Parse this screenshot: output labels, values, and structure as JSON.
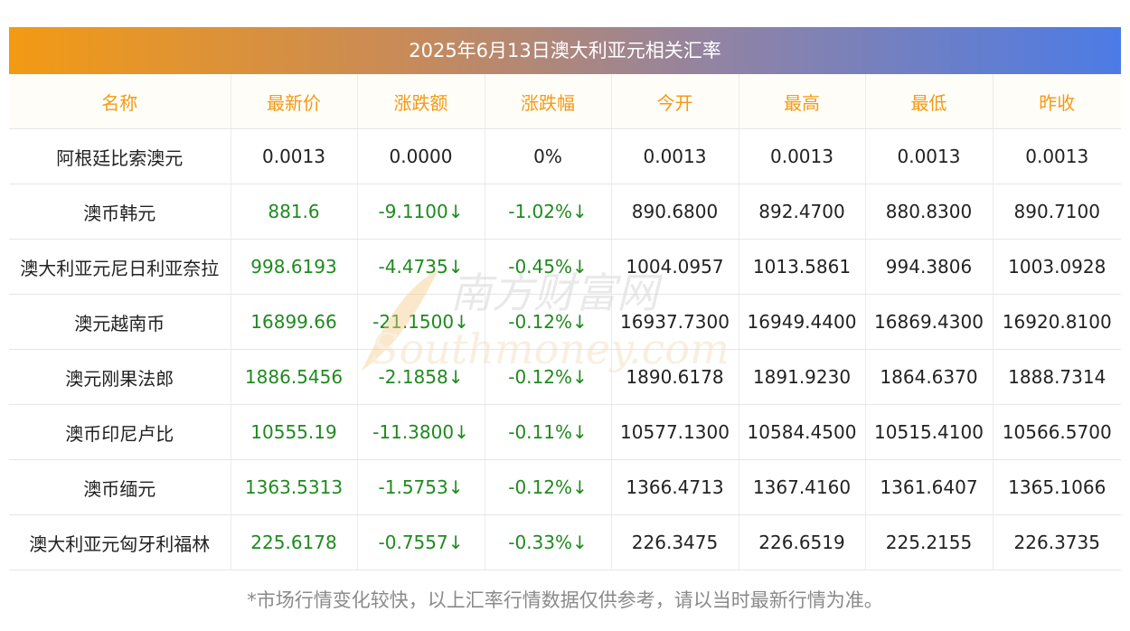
{
  "title": "2025年6月13日澳大利亚元相关汇率",
  "headers": [
    "名称",
    "最新价",
    "涨跌额",
    "涨跌幅",
    "今开",
    "最高",
    "最低",
    "昨收"
  ],
  "rows": [
    {
      "name": "阿根廷比索澳元",
      "latest": "0.0013",
      "change": "0.0000",
      "change_pct": "0%",
      "open": "0.0013",
      "high": "0.0013",
      "low": "0.0013",
      "prev_close": "0.0013",
      "trend": "flat"
    },
    {
      "name": "澳币韩元",
      "latest": "881.6",
      "change": "-9.1100↓",
      "change_pct": "-1.02%↓",
      "open": "890.6800",
      "high": "892.4700",
      "low": "880.8300",
      "prev_close": "890.7100",
      "trend": "down"
    },
    {
      "name": "澳大利亚元尼日利亚奈拉",
      "latest": "998.6193",
      "change": "-4.4735↓",
      "change_pct": "-0.45%↓",
      "open": "1004.0957",
      "high": "1013.5861",
      "low": "994.3806",
      "prev_close": "1003.0928",
      "trend": "down"
    },
    {
      "name": "澳元越南币",
      "latest": "16899.66",
      "change": "-21.1500↓",
      "change_pct": "-0.12%↓",
      "open": "16937.7300",
      "high": "16949.4400",
      "low": "16869.4300",
      "prev_close": "16920.8100",
      "trend": "down"
    },
    {
      "name": "澳元刚果法郎",
      "latest": "1886.5456",
      "change": "-2.1858↓",
      "change_pct": "-0.12%↓",
      "open": "1890.6178",
      "high": "1891.9230",
      "low": "1864.6370",
      "prev_close": "1888.7314",
      "trend": "down"
    },
    {
      "name": "澳币印尼卢比",
      "latest": "10555.19",
      "change": "-11.3800↓",
      "change_pct": "-0.11%↓",
      "open": "10577.1300",
      "high": "10584.4500",
      "low": "10515.4100",
      "prev_close": "10566.5700",
      "trend": "down"
    },
    {
      "name": "澳币缅元",
      "latest": "1363.5313",
      "change": "-1.5753↓",
      "change_pct": "-0.12%↓",
      "open": "1366.4713",
      "high": "1367.4160",
      "low": "1361.6407",
      "prev_close": "1365.1066",
      "trend": "down"
    },
    {
      "name": "澳大利亚元匈牙利福林",
      "latest": "225.6178",
      "change": "-0.7557↓",
      "change_pct": "-0.33%↓",
      "open": "226.3475",
      "high": "226.6519",
      "low": "225.2155",
      "prev_close": "226.3735",
      "trend": "down"
    }
  ],
  "watermark": {
    "cn": "南方财富网",
    "en": "Southmoney.com"
  },
  "footer_note": "*市场行情变化较快，以上汇率行情数据仅供参考，请以当时最新行情为准。",
  "colors": {
    "header_text": "#f39a14",
    "down_value": "#1f8a1f",
    "gradient_start": "#f39a14",
    "gradient_end": "#4c7be6"
  }
}
